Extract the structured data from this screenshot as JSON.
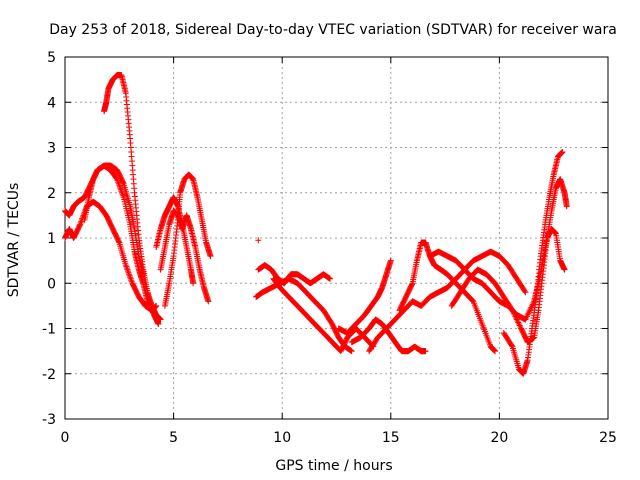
{
  "chart_data": {
    "type": "scatter",
    "title": "Day 253 of 2018, Sidereal Day-to-day VTEC variation (SDTVAR) for receiver wara",
    "xlabel": "GPS time / hours",
    "ylabel": "SDTVAR / TECUs",
    "xlim": [
      0,
      25
    ],
    "ylim": [
      -3,
      5
    ],
    "xticks": [
      "0",
      "5",
      "10",
      "15",
      "20",
      "25"
    ],
    "yticks": [
      "-3",
      "-2",
      "-1",
      "0",
      "1",
      "2",
      "3",
      "4",
      "5"
    ],
    "grid": true,
    "marker": "plus",
    "color": "#ff0000",
    "series": [
      {
        "name": "s1",
        "points": [
          [
            1.8,
            3.8
          ],
          [
            1.9,
            4.0
          ],
          [
            2.0,
            4.3
          ],
          [
            2.2,
            4.5
          ],
          [
            2.4,
            4.6
          ],
          [
            2.6,
            4.6
          ],
          [
            2.8,
            4.2
          ],
          [
            3.0,
            3.2
          ],
          [
            3.2,
            2.0
          ],
          [
            3.4,
            1.0
          ],
          [
            3.6,
            0.3
          ],
          [
            3.8,
            -0.2
          ],
          [
            4.0,
            -0.5
          ],
          [
            4.2,
            -0.7
          ],
          [
            4.4,
            -0.8
          ]
        ]
      },
      {
        "name": "s2",
        "points": [
          [
            0.9,
            1.4
          ],
          [
            1.1,
            1.9
          ],
          [
            1.3,
            2.3
          ],
          [
            1.5,
            2.5
          ],
          [
            1.8,
            2.6
          ],
          [
            2.1,
            2.5
          ],
          [
            2.4,
            2.3
          ],
          [
            2.7,
            1.9
          ],
          [
            3.0,
            1.3
          ],
          [
            3.2,
            0.7
          ],
          [
            3.4,
            0.3
          ],
          [
            3.6,
            0.0
          ],
          [
            3.8,
            -0.4
          ],
          [
            4.1,
            -0.7
          ],
          [
            4.3,
            -0.9
          ]
        ]
      },
      {
        "name": "s3",
        "points": [
          [
            0.0,
            1.0
          ],
          [
            0.2,
            1.2
          ],
          [
            0.4,
            1.0
          ],
          [
            0.7,
            1.3
          ],
          [
            1.0,
            1.7
          ],
          [
            1.3,
            1.8
          ],
          [
            1.6,
            1.7
          ],
          [
            1.9,
            1.5
          ],
          [
            2.2,
            1.2
          ],
          [
            2.5,
            0.9
          ],
          [
            2.8,
            0.4
          ],
          [
            3.1,
            0.0
          ],
          [
            3.4,
            -0.3
          ],
          [
            3.7,
            -0.5
          ],
          [
            4.0,
            -0.6
          ],
          [
            4.2,
            -0.5
          ]
        ]
      },
      {
        "name": "s4",
        "points": [
          [
            0.0,
            1.6
          ],
          [
            0.2,
            1.5
          ],
          [
            0.4,
            1.7
          ],
          [
            0.6,
            1.8
          ],
          [
            0.9,
            1.9
          ],
          [
            1.2,
            2.2
          ],
          [
            1.5,
            2.5
          ],
          [
            1.8,
            2.6
          ],
          [
            2.1,
            2.6
          ],
          [
            2.4,
            2.5
          ],
          [
            2.7,
            2.2
          ],
          [
            3.0,
            1.7
          ],
          [
            3.2,
            1.2
          ],
          [
            3.4,
            0.6
          ],
          [
            3.6,
            0.2
          ]
        ]
      },
      {
        "name": "s5",
        "points": [
          [
            4.2,
            0.8
          ],
          [
            4.4,
            1.2
          ],
          [
            4.6,
            1.5
          ],
          [
            4.8,
            1.7
          ],
          [
            5.0,
            1.9
          ],
          [
            5.2,
            1.7
          ],
          [
            5.4,
            1.3
          ],
          [
            5.6,
            0.8
          ],
          [
            5.8,
            0.3
          ],
          [
            5.9,
            0.0
          ]
        ]
      },
      {
        "name": "s6",
        "points": [
          [
            4.4,
            0.3
          ],
          [
            4.6,
            0.8
          ],
          [
            4.8,
            1.3
          ],
          [
            5.0,
            1.6
          ],
          [
            5.2,
            1.5
          ],
          [
            5.4,
            1.2
          ],
          [
            5.6,
            1.5
          ],
          [
            5.8,
            1.2
          ],
          [
            6.0,
            0.8
          ],
          [
            6.2,
            0.3
          ],
          [
            6.4,
            -0.1
          ],
          [
            6.6,
            -0.4
          ]
        ]
      },
      {
        "name": "s7",
        "points": [
          [
            4.6,
            -0.5
          ],
          [
            4.8,
            0.0
          ],
          [
            5.0,
            0.6
          ],
          [
            5.2,
            1.4
          ],
          [
            5.3,
            2.0
          ],
          [
            5.5,
            2.3
          ],
          [
            5.7,
            2.4
          ],
          [
            5.9,
            2.3
          ],
          [
            6.1,
            1.9
          ],
          [
            6.3,
            1.4
          ],
          [
            6.5,
            0.9
          ],
          [
            6.7,
            0.6
          ]
        ]
      },
      {
        "name": "s8",
        "points": [
          [
            8.9,
            0.95
          ]
        ]
      },
      {
        "name": "s9",
        "points": [
          [
            8.8,
            -0.3
          ],
          [
            9.1,
            -0.2
          ],
          [
            9.5,
            -0.1
          ],
          [
            9.9,
            0.0
          ],
          [
            10.3,
            0.1
          ],
          [
            10.7,
            0.0
          ],
          [
            11.1,
            -0.2
          ],
          [
            11.5,
            -0.4
          ],
          [
            11.9,
            -0.6
          ],
          [
            12.3,
            -0.9
          ],
          [
            12.6,
            -1.2
          ],
          [
            12.9,
            -1.4
          ],
          [
            13.2,
            -1.5
          ]
        ]
      },
      {
        "name": "s10",
        "points": [
          [
            8.9,
            0.3
          ],
          [
            9.2,
            0.4
          ],
          [
            9.5,
            0.3
          ],
          [
            9.8,
            0.1
          ],
          [
            10.1,
            0.0
          ],
          [
            10.4,
            0.2
          ],
          [
            10.7,
            0.2
          ],
          [
            11.0,
            0.1
          ],
          [
            11.3,
            0.0
          ],
          [
            11.6,
            0.1
          ],
          [
            11.9,
            0.2
          ],
          [
            12.2,
            0.1
          ]
        ]
      },
      {
        "name": "s11",
        "points": [
          [
            9.6,
            0.1
          ],
          [
            9.9,
            -0.1
          ],
          [
            10.3,
            -0.3
          ],
          [
            10.7,
            -0.5
          ],
          [
            11.1,
            -0.7
          ],
          [
            11.5,
            -0.9
          ],
          [
            11.9,
            -1.1
          ],
          [
            12.3,
            -1.3
          ],
          [
            12.7,
            -1.5
          ],
          [
            13.0,
            -1.2
          ],
          [
            13.4,
            -1.0
          ],
          [
            13.8,
            -1.2
          ],
          [
            14.2,
            -1.4
          ]
        ]
      },
      {
        "name": "s12",
        "points": [
          [
            12.6,
            -1.0
          ],
          [
            13.0,
            -1.1
          ],
          [
            13.4,
            -0.9
          ],
          [
            13.8,
            -0.7
          ],
          [
            14.1,
            -0.5
          ],
          [
            14.4,
            -0.3
          ],
          [
            14.6,
            -0.1
          ],
          [
            14.8,
            0.2
          ],
          [
            15.0,
            0.5
          ]
        ]
      },
      {
        "name": "s13",
        "points": [
          [
            13.2,
            -1.3
          ],
          [
            13.6,
            -1.2
          ],
          [
            14.0,
            -1.0
          ],
          [
            14.3,
            -0.8
          ],
          [
            14.6,
            -0.9
          ],
          [
            14.9,
            -1.1
          ],
          [
            15.2,
            -1.3
          ],
          [
            15.5,
            -1.5
          ],
          [
            15.8,
            -1.5
          ],
          [
            16.1,
            -1.4
          ],
          [
            16.4,
            -1.5
          ],
          [
            16.6,
            -1.5
          ]
        ]
      },
      {
        "name": "s14",
        "points": [
          [
            14.0,
            -1.5
          ],
          [
            14.4,
            -1.2
          ],
          [
            14.8,
            -1.0
          ],
          [
            15.2,
            -0.8
          ],
          [
            15.6,
            -0.6
          ],
          [
            16.0,
            -0.4
          ],
          [
            16.4,
            -0.5
          ],
          [
            16.8,
            -0.3
          ],
          [
            17.2,
            -0.2
          ],
          [
            17.6,
            -0.1
          ],
          [
            18.0,
            0.1
          ],
          [
            18.4,
            0.3
          ],
          [
            18.8,
            0.5
          ],
          [
            19.2,
            0.6
          ],
          [
            19.6,
            0.7
          ],
          [
            20.0,
            0.6
          ],
          [
            20.4,
            0.4
          ],
          [
            20.8,
            0.1
          ],
          [
            21.2,
            -0.2
          ]
        ]
      },
      {
        "name": "s15",
        "points": [
          [
            15.4,
            -0.6
          ],
          [
            15.7,
            -0.3
          ],
          [
            16.0,
            0.0
          ],
          [
            16.2,
            0.5
          ],
          [
            16.4,
            0.9
          ],
          [
            16.6,
            0.9
          ],
          [
            16.8,
            0.6
          ],
          [
            17.0,
            0.4
          ],
          [
            17.3,
            0.3
          ],
          [
            17.6,
            0.2
          ],
          [
            18.0,
            0.0
          ],
          [
            18.4,
            -0.2
          ],
          [
            18.8,
            -0.4
          ],
          [
            19.2,
            -0.9
          ],
          [
            19.6,
            -1.4
          ],
          [
            19.8,
            -1.5
          ]
        ]
      },
      {
        "name": "s16",
        "points": [
          [
            16.8,
            0.6
          ],
          [
            17.2,
            0.7
          ],
          [
            17.6,
            0.6
          ],
          [
            18.0,
            0.5
          ],
          [
            18.4,
            0.3
          ],
          [
            18.8,
            0.1
          ],
          [
            19.2,
            0.0
          ],
          [
            19.6,
            -0.2
          ],
          [
            20.0,
            -0.4
          ],
          [
            20.4,
            -0.5
          ],
          [
            20.8,
            -0.7
          ],
          [
            21.2,
            -0.8
          ],
          [
            21.6,
            -0.4
          ],
          [
            21.8,
            0.0
          ],
          [
            22.0,
            0.5
          ],
          [
            22.2,
            1.0
          ],
          [
            22.4,
            1.2
          ],
          [
            22.6,
            1.1
          ],
          [
            22.8,
            0.5
          ],
          [
            23.0,
            0.3
          ]
        ]
      },
      {
        "name": "s17",
        "points": [
          [
            17.8,
            -0.5
          ],
          [
            18.2,
            -0.2
          ],
          [
            18.6,
            0.1
          ],
          [
            19.0,
            0.3
          ],
          [
            19.4,
            0.2
          ],
          [
            19.8,
            0.0
          ],
          [
            20.2,
            -0.3
          ],
          [
            20.6,
            -0.6
          ],
          [
            21.0,
            -1.0
          ],
          [
            21.3,
            -1.3
          ],
          [
            21.6,
            -1.2
          ],
          [
            21.8,
            -0.6
          ],
          [
            22.0,
            0.2
          ],
          [
            22.2,
            1.0
          ],
          [
            22.4,
            1.6
          ],
          [
            22.6,
            2.1
          ],
          [
            22.8,
            2.3
          ],
          [
            23.0,
            2.0
          ],
          [
            23.1,
            1.7
          ]
        ]
      },
      {
        "name": "s18",
        "points": [
          [
            20.2,
            -1.1
          ],
          [
            20.6,
            -1.4
          ],
          [
            20.9,
            -1.9
          ],
          [
            21.1,
            -2.0
          ],
          [
            21.3,
            -1.7
          ],
          [
            21.5,
            -1.0
          ],
          [
            21.7,
            -0.3
          ],
          [
            21.9,
            0.6
          ],
          [
            22.1,
            1.3
          ],
          [
            22.3,
            1.9
          ],
          [
            22.5,
            2.4
          ],
          [
            22.7,
            2.8
          ],
          [
            22.9,
            2.9
          ]
        ]
      }
    ]
  }
}
